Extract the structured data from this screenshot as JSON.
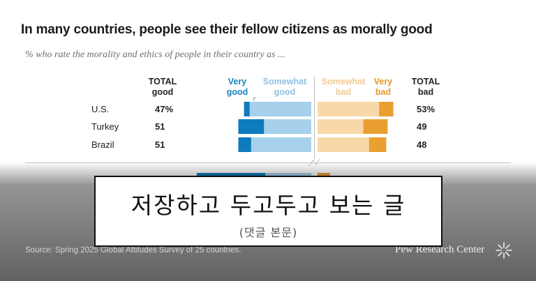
{
  "title": "In many countries, people see their fellow citizens as morally good",
  "subtitle": "% who rate the morality and ethics of people in their country as ...",
  "headers": {
    "total_good": [
      "TOTAL",
      "good"
    ],
    "very_good": [
      "Very",
      "good"
    ],
    "somewhat_good": [
      "Somewhat",
      "good"
    ],
    "somewhat_bad": [
      "Somewhat",
      "bad"
    ],
    "very_bad": [
      "Very",
      "bad"
    ],
    "total_bad": [
      "TOTAL",
      "bad"
    ]
  },
  "colors": {
    "very_good": "#0e7bbf",
    "somewhat_good": "#a7d0ec",
    "somewhat_bad": "#f8d8a8",
    "very_bad": "#e9a030"
  },
  "chart_data": {
    "type": "bar",
    "orientation": "horizontal-diverging",
    "categories": [
      "U.S.",
      "Turkey",
      "Brazil"
    ],
    "total_good_labels": [
      "47%",
      "51",
      "51"
    ],
    "total_bad_labels": [
      "53%",
      "49",
      "48"
    ],
    "series": [
      {
        "name": "Very good",
        "values": [
          4,
          18,
          9
        ]
      },
      {
        "name": "Somewhat good",
        "values": [
          43,
          33,
          42
        ]
      },
      {
        "name": "Somewhat bad",
        "values": [
          43,
          32,
          36
        ]
      },
      {
        "name": "Very bad",
        "values": [
          10,
          17,
          12
        ]
      }
    ]
  },
  "footer": {
    "source": "Source: Spring 2025 Global Attitudes Survey of 25 countries.",
    "logo": "Pew Research Center"
  },
  "overlay": {
    "main": "저장하고 두고두고 보는 글",
    "sub": "(댓글 본문)"
  }
}
